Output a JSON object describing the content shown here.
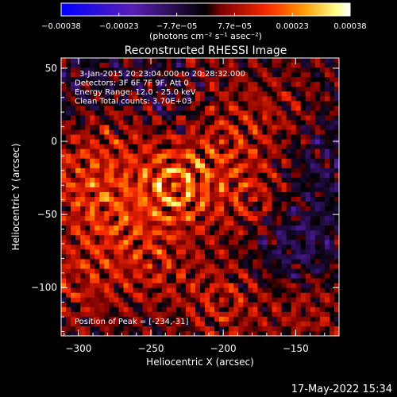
{
  "chart_data": {
    "type": "heatmap",
    "title": "Reconstructed RHESSI Image",
    "xlabel": "Heliocentric X (arcsec)",
    "ylabel": "Heliocentric Y (arcsec)",
    "xlim": [
      -312,
      -120
    ],
    "ylim": [
      -133,
      57
    ],
    "x_ticks": [
      {
        "value": -300,
        "label": "−300"
      },
      {
        "value": -250,
        "label": "−250"
      },
      {
        "value": -200,
        "label": "−200"
      },
      {
        "value": -150,
        "label": "−150"
      }
    ],
    "y_ticks": [
      {
        "value": 50,
        "label": "50"
      },
      {
        "value": 0,
        "label": "0"
      },
      {
        "value": -50,
        "label": "−50"
      },
      {
        "value": -100,
        "label": "−100"
      }
    ],
    "colorbar": {
      "range": [
        -0.00038,
        0.00038
      ],
      "tick_labels": [
        "−0.00038",
        "−0.00023",
        "−7.7e−05",
        "7.7e−05",
        "0.00023",
        "0.00038"
      ],
      "unit_label": "(photons cm⁻² s⁻¹ asec⁻²)",
      "colors": [
        "#0000ff",
        "#5a1fb4",
        "#000000",
        "#7a0000",
        "#ff2a00",
        "#ff9a00",
        "#ffff88",
        "#ffffff"
      ]
    },
    "annotations": [
      "3-Jan-2015 20:23:04.000 to 20:28:32.000",
      "Detectors: 3F 6F 7F 9F, Att 0",
      "Energy Range: 12.0 - 25.0 keV",
      "Clean    Total counts: 3.70E+03"
    ],
    "peak_label": "Position of Peak = [-234,-31]",
    "peak": {
      "x": -234,
      "y": -31
    },
    "sources": [
      {
        "x": -234,
        "y": -31,
        "amp": 1.0
      },
      {
        "x": -280,
        "y": -50,
        "amp": 0.6
      },
      {
        "x": -300,
        "y": -20,
        "amp": 0.55
      },
      {
        "x": -200,
        "y": 0,
        "amp": 0.45
      },
      {
        "x": -180,
        "y": -40,
        "amp": 0.5
      },
      {
        "x": -270,
        "y": 10,
        "amp": 0.4
      },
      {
        "x": -250,
        "y": -85,
        "amp": 0.45
      },
      {
        "x": -300,
        "y": -95,
        "amp": 0.5
      },
      {
        "x": -200,
        "y": -110,
        "amp": 0.5
      },
      {
        "x": -140,
        "y": -115,
        "amp": 0.4
      },
      {
        "x": -160,
        "y": 20,
        "amp": 0.35
      },
      {
        "x": -215,
        "y": 45,
        "amp": 0.3
      },
      {
        "x": -150,
        "y": -70,
        "amp": -0.55
      },
      {
        "x": -235,
        "y": 30,
        "amp": -0.4
      },
      {
        "x": -130,
        "y": -10,
        "amp": -0.35
      },
      {
        "x": -290,
        "y": 35,
        "amp": -0.3
      }
    ]
  },
  "timestamp": "17-May-2022 15:34"
}
